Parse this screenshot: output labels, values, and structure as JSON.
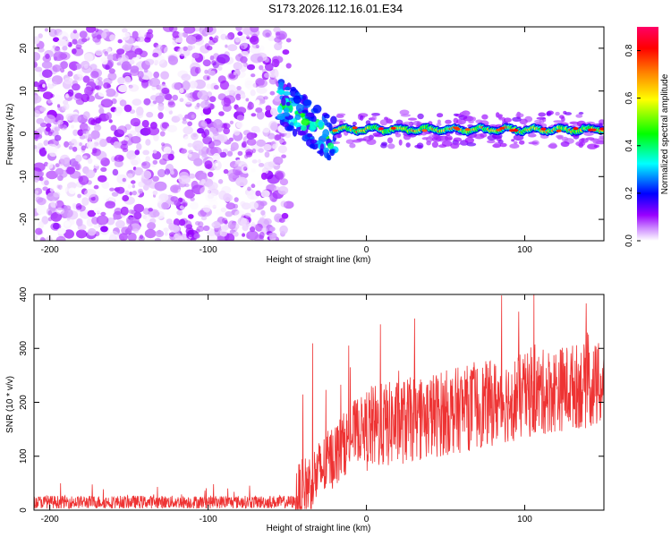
{
  "title": "S173.2026.112.16.01.E34",
  "chart_data": [
    {
      "type": "heatmap",
      "xlabel": "Height of straight line (km)",
      "ylabel": "Frequency (Hz)",
      "xlim": [
        -210,
        150
      ],
      "ylim": [
        -25,
        25
      ],
      "xticks": [
        -200,
        -100,
        0,
        100
      ],
      "yticks": [
        -20,
        -10,
        0,
        10,
        20
      ],
      "colorbar": {
        "label": "Normalized spectral amplitude",
        "range": [
          0,
          0.9
        ],
        "ticks": [
          "0.0",
          "0.2",
          "0.4",
          "0.6",
          "0.8"
        ],
        "tick_values": [
          0.0,
          0.2,
          0.4,
          0.6,
          0.8
        ],
        "colors": [
          "#ffffff",
          "#9900ff",
          "#0000ff",
          "#00ffff",
          "#00ff00",
          "#ffff00",
          "#ff8800",
          "#ff0000",
          "#ff0066"
        ]
      },
      "regions": [
        {
          "name": "noise",
          "x_range": [
            -210,
            -55
          ],
          "freq_range": [
            -25,
            25
          ],
          "amplitude_range": [
            0.0,
            0.12
          ]
        },
        {
          "name": "onset",
          "x_range": [
            -55,
            -20
          ],
          "freq_start": 8,
          "freq_end": -2,
          "amplitude_range": [
            0.15,
            0.5
          ]
        },
        {
          "name": "signal",
          "x_range": [
            -20,
            150
          ],
          "freq_center": 1,
          "freq_halfwidth": 2,
          "amplitude_range": [
            0.3,
            0.9
          ]
        }
      ]
    },
    {
      "type": "line",
      "xlabel": "Height of straight line (km)",
      "ylabel": "SNR (10 * v/v)",
      "xlim": [
        -210,
        150
      ],
      "ylim": [
        0,
        400
      ],
      "xticks": [
        -200,
        -100,
        0,
        100
      ],
      "yticks": [
        0,
        100,
        200,
        300,
        400
      ],
      "color": "#ee3333",
      "series": [
        {
          "name": "SNR",
          "segments": [
            {
              "x_range": [
                -210,
                -45
              ],
              "baseline": 15,
              "noise_amplitude": 12,
              "max_spike": 50
            },
            {
              "x_range": [
                -45,
                0
              ],
              "baseline_start": 20,
              "baseline_end": 150,
              "noise_amplitude": 60,
              "max_spike": 310
            },
            {
              "x_range": [
                0,
                150
              ],
              "baseline_start": 150,
              "baseline_end": 230,
              "noise_amplitude": 80,
              "max_spike": 400
            }
          ]
        }
      ]
    }
  ]
}
